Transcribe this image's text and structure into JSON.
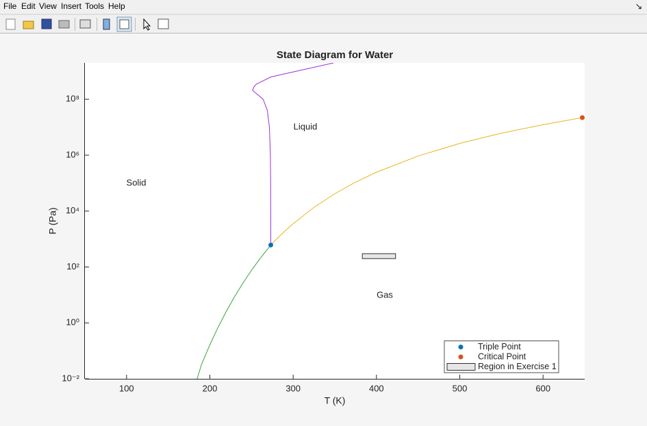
{
  "menu": [
    "File",
    "Edit",
    "View",
    "Insert",
    "Tools",
    "Help"
  ],
  "chart_data": {
    "type": "line",
    "title": "State Diagram for Water",
    "x_label": "T (K)",
    "y_label": "P (Pa)",
    "xlim": [
      50,
      650
    ],
    "xticks": [
      100,
      200,
      300,
      400,
      500,
      600
    ],
    "ylim": [
      0.01,
      2000000000
    ],
    "y_log": true,
    "yticks": [
      {
        "value": 0.01,
        "label": "10⁻²"
      },
      {
        "value": 1,
        "label": "10⁰"
      },
      {
        "value": 100,
        "label": "10²"
      },
      {
        "value": 10000,
        "label": "10⁴"
      },
      {
        "value": 1000000,
        "label": "10⁶"
      },
      {
        "value": 100000000,
        "label": "10⁸"
      }
    ],
    "annotations": [
      "Solid",
      "Liquid",
      "Gas"
    ],
    "curves": [
      {
        "color": "#3aa23a",
        "x": [
          184.7,
          190,
          200,
          210,
          220,
          230,
          240,
          250,
          260,
          273.16
        ],
        "values": [
          0.01,
          0.0326,
          0.165,
          0.709,
          2.68,
          8.99,
          27.3,
          76.3,
          196,
          611.657
        ]
      },
      {
        "color": "#edb120",
        "x": [
          273.16,
          280,
          290,
          300,
          325,
          350,
          373,
          400,
          450,
          500,
          550,
          600,
          647.096
        ],
        "values": [
          611.657,
          991.8,
          1920,
          3537,
          13600,
          41680,
          101325,
          245600,
          932000,
          2640000,
          6120000,
          12300000,
          22064000
        ]
      },
      {
        "color": "#9b30d9",
        "x": [
          273.16,
          273.0,
          272.7,
          271.5,
          269,
          264,
          257,
          251.2,
          253,
          256,
          273.3,
          348.4
        ],
        "values": [
          611.657,
          100000,
          1000000,
          10000000,
          40000000,
          100000000,
          150000000,
          210000000,
          280000000,
          350000000,
          630000000,
          2000000000
        ]
      }
    ],
    "legend": "southeast",
    "series": [
      {
        "name": "Triple Point",
        "color": "#0072bd",
        "x": [
          273.16
        ],
        "values": [
          611.657
        ]
      },
      {
        "name": "Critical Point",
        "color": "#d95319",
        "x": [
          647.096
        ],
        "values": [
          22064000
        ]
      },
      {
        "name": "Region in Exercise 1",
        "color": "#e6e6e6",
        "x": [
          383,
          423
        ],
        "values": [
          200,
          300
        ]
      }
    ]
  }
}
